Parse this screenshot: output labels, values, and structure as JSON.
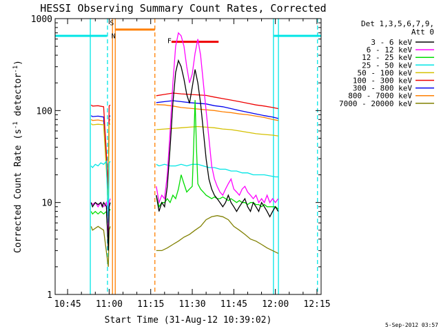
{
  "chart_data": {
    "type": "line",
    "title": "HESSI Observing Summary Count Rates, Corrected",
    "xlabel": "Start Time (31-Aug-12 10:39:02)",
    "ylabel_main": "Corrected Count Rate (s",
    "ylabel_sup1": "-1",
    "ylabel_mid": " detector",
    "ylabel_sup2": "-1",
    "ylabel_end": ")",
    "xlim_minutes": [
      40.5,
      136.5
    ],
    "ylim": [
      1,
      1000
    ],
    "yscale": "log",
    "x_ticks": [
      {
        "label": "10:45",
        "minutes": 45
      },
      {
        "label": "11:00",
        "minutes": 60
      },
      {
        "label": "11:15",
        "minutes": 75
      },
      {
        "label": "11:30",
        "minutes": 90
      },
      {
        "label": "11:45",
        "minutes": 105
      },
      {
        "label": "12:00",
        "minutes": 120
      },
      {
        "label": "12:15",
        "minutes": 135
      }
    ],
    "y_ticks": [
      {
        "label": "1",
        "value": 1
      },
      {
        "label": "10",
        "value": 10
      },
      {
        "label": "100",
        "value": 100
      },
      {
        "label": "1000",
        "value": 1000
      }
    ],
    "legend": {
      "header1": "Det 1,3,5,6,7,9,",
      "header2": "Att 0",
      "placement": "right"
    },
    "series": [
      {
        "name": "3 - 6 keV",
        "color": "#000000",
        "x": [
          53.5,
          54,
          55,
          56,
          57,
          57.5,
          58,
          59,
          59.7,
          60,
          60.4,
          77,
          78,
          79,
          80,
          81,
          82,
          83,
          84,
          85,
          86,
          87,
          88,
          89,
          90,
          91,
          92,
          93,
          94,
          95,
          96,
          97,
          98,
          99,
          100,
          101,
          102,
          103,
          104,
          105,
          106,
          107,
          108,
          109,
          110,
          111,
          112,
          113,
          114,
          115,
          116,
          117,
          118,
          119,
          120,
          121
        ],
        "y": [
          10,
          9,
          10,
          9.5,
          10,
          9,
          10,
          9,
          3,
          9,
          10,
          12,
          8,
          10,
          9,
          15,
          40,
          120,
          260,
          350,
          300,
          220,
          150,
          120,
          180,
          280,
          200,
          120,
          60,
          30,
          18,
          14,
          12,
          11,
          10,
          9,
          10,
          12,
          10,
          9,
          8,
          9,
          10,
          11,
          9,
          8,
          10,
          9,
          8,
          10,
          9,
          8,
          7,
          8,
          9,
          8
        ]
      },
      {
        "name": "6 - 12 keV",
        "color": "#ff00ff",
        "x": [
          53.5,
          54,
          55,
          56,
          57,
          58,
          59,
          59.7,
          60,
          60.4,
          77,
          78,
          79,
          80,
          81,
          82,
          83,
          84,
          85,
          86,
          87,
          88,
          89,
          90,
          91,
          92,
          93,
          94,
          95,
          96,
          97,
          98,
          99,
          100,
          101,
          102,
          103,
          104,
          105,
          106,
          107,
          108,
          109,
          110,
          111,
          112,
          113,
          114,
          115,
          116,
          117,
          118,
          119,
          120,
          121
        ],
        "y": [
          10,
          9.5,
          10,
          9,
          10,
          9,
          10,
          4,
          10,
          11,
          15,
          10,
          12,
          11,
          20,
          60,
          200,
          500,
          700,
          650,
          500,
          300,
          200,
          250,
          420,
          600,
          400,
          200,
          100,
          50,
          25,
          18,
          15,
          13,
          12,
          14,
          16,
          18,
          14,
          13,
          12,
          14,
          15,
          13,
          12,
          11,
          12,
          10,
          11,
          10,
          12,
          10,
          11,
          10,
          11
        ]
      },
      {
        "name": "12 - 25 keV",
        "color": "#00dd00",
        "x": [
          53.5,
          54,
          55,
          56,
          57,
          58,
          59,
          59.7,
          60,
          60.4,
          77,
          78,
          79,
          80,
          81,
          82,
          83,
          84,
          85,
          86,
          87,
          88,
          89,
          90,
          90.5,
          91,
          91.5,
          92,
          93,
          94,
          95,
          96,
          97,
          98,
          99,
          100,
          101,
          102,
          103,
          104,
          105,
          106,
          107,
          108,
          109,
          110,
          111,
          112,
          113,
          114,
          115,
          116,
          117,
          118,
          119,
          120,
          121
        ],
        "y": [
          8,
          7.5,
          8,
          7.5,
          8,
          7.5,
          8,
          3.5,
          8,
          8.5,
          12,
          9,
          10,
          10,
          11,
          10,
          12,
          11,
          14,
          20,
          16,
          13,
          14,
          15,
          40,
          130,
          40,
          16,
          14,
          13,
          12,
          11.5,
          11,
          11.5,
          11,
          11,
          11.5,
          11,
          10.5,
          11,
          10.5,
          10,
          10.5,
          10,
          10,
          9.5,
          10,
          10,
          9.5,
          9.5,
          9,
          9.5,
          9,
          9,
          9,
          9,
          8.5
        ]
      },
      {
        "name": "25 - 50 keV",
        "color": "#00e5e5",
        "x": [
          53.5,
          54,
          55,
          56,
          57,
          58,
          59,
          59.7,
          60,
          60.4,
          77,
          78,
          80,
          82,
          84,
          86,
          88,
          90,
          92,
          94,
          96,
          98,
          100,
          102,
          104,
          106,
          108,
          110,
          112,
          114,
          116,
          118,
          120,
          121
        ],
        "y": [
          25,
          24,
          26,
          25,
          27,
          26,
          28,
          6,
          27,
          28,
          26,
          25,
          26,
          25,
          25,
          26,
          25,
          26,
          26,
          25,
          24,
          24,
          23,
          23,
          22,
          22,
          21,
          21,
          20,
          20,
          20,
          19.5,
          19,
          19
        ]
      },
      {
        "name": "50 - 100 keV",
        "color": "#d4c000",
        "x": [
          53.5,
          54,
          56,
          58,
          59.7,
          60,
          60.4,
          77,
          80,
          83,
          86,
          89,
          92,
          95,
          98,
          101,
          104,
          107,
          110,
          113,
          116,
          119,
          121
        ],
        "y": [
          72,
          70,
          71,
          70,
          10,
          70,
          72,
          62,
          63,
          64,
          65,
          66,
          67,
          66,
          65,
          63,
          62,
          60,
          58,
          56,
          55,
          54,
          53
        ]
      },
      {
        "name": "100 - 300 keV",
        "color": "#ee0000",
        "x": [
          53.5,
          54,
          56,
          58,
          59.7,
          60,
          60.4,
          77,
          80,
          83,
          86,
          89,
          92,
          95,
          98,
          101,
          104,
          107,
          110,
          113,
          116,
          119,
          121
        ],
        "y": [
          115,
          112,
          113,
          110,
          15,
          112,
          115,
          145,
          150,
          155,
          152,
          150,
          148,
          146,
          140,
          135,
          130,
          125,
          120,
          115,
          112,
          108,
          105
        ]
      },
      {
        "name": "300 - 800 keV",
        "color": "#0000ee",
        "x": [
          53.5,
          54,
          56,
          58,
          59.7,
          60,
          60.4,
          77,
          80,
          83,
          86,
          89,
          92,
          95,
          98,
          101,
          104,
          107,
          110,
          113,
          116,
          119,
          121
        ],
        "y": [
          88,
          86,
          87,
          85,
          12,
          86,
          88,
          122,
          125,
          128,
          125,
          122,
          120,
          118,
          113,
          110,
          105,
          100,
          96,
          92,
          88,
          85,
          82
        ]
      },
      {
        "name": "800 - 7000 keV",
        "color": "#ff7f00",
        "x": [
          53.5,
          54,
          56,
          58,
          59.7,
          60,
          60.4,
          77,
          80,
          83,
          86,
          89,
          92,
          95,
          98,
          101,
          104,
          107,
          110,
          113,
          116,
          119,
          121
        ],
        "y": [
          80,
          78,
          79,
          77,
          11,
          78,
          80,
          116,
          115,
          112,
          108,
          106,
          104,
          102,
          100,
          97,
          95,
          92,
          90,
          87,
          84,
          80,
          78
        ]
      },
      {
        "name": "7000 - 20000 keV",
        "color": "#808000",
        "x": [
          53.5,
          54,
          56,
          58,
          59.7,
          60,
          60.4,
          77,
          79,
          81,
          83,
          85,
          87,
          89,
          91,
          93,
          95,
          97,
          99,
          101,
          103,
          105,
          107,
          109,
          111,
          113,
          115,
          117,
          119,
          121
        ],
        "y": [
          5.5,
          5,
          5.5,
          5,
          2,
          5,
          5.5,
          3,
          3,
          3.2,
          3.5,
          3.8,
          4.2,
          4.5,
          5,
          5.5,
          6.5,
          7,
          7.2,
          7,
          6.5,
          5.5,
          5,
          4.5,
          4,
          3.8,
          3.5,
          3.2,
          3,
          2.8
        ]
      }
    ],
    "annotations": [
      {
        "label": "S",
        "color": "#00aa00",
        "x": 60.2,
        "y": 850
      },
      {
        "label": "N",
        "color": "#00aaaa",
        "x": 60.8,
        "y": 610
      },
      {
        "label": "F",
        "color": "#ff0000",
        "x": 81,
        "y": 540
      }
    ],
    "segments": [
      {
        "color": "#00e5e5",
        "x0": 40.5,
        "x1": 59.2,
        "y": 650
      },
      {
        "color": "#00e5e5",
        "x0": 119.5,
        "x1": 136.5,
        "y": 650
      },
      {
        "color": "#ff7f00",
        "x0": 62.2,
        "x1": 76.5,
        "y": 760
      },
      {
        "color": "#ee0000",
        "x0": 82.5,
        "x1": 99.5,
        "y": 560
      }
    ],
    "vlines": [
      {
        "x": 53.2,
        "color": "#00e5e5",
        "dash": false
      },
      {
        "x": 59.4,
        "color": "#00e5e5",
        "dash": true
      },
      {
        "x": 61.2,
        "color": "#ff7f00",
        "dash": false
      },
      {
        "x": 62.2,
        "color": "#ff7f00",
        "dash": false
      },
      {
        "x": 76.5,
        "color": "#ff7f00",
        "dash": true
      },
      {
        "x": 119.3,
        "color": "#00e5e5",
        "dash": false
      },
      {
        "x": 121.1,
        "color": "#00e5e5",
        "dash": false
      },
      {
        "x": 135.2,
        "color": "#00e5e5",
        "dash": true
      }
    ],
    "footer": "5-Sep-2012 03:57"
  }
}
